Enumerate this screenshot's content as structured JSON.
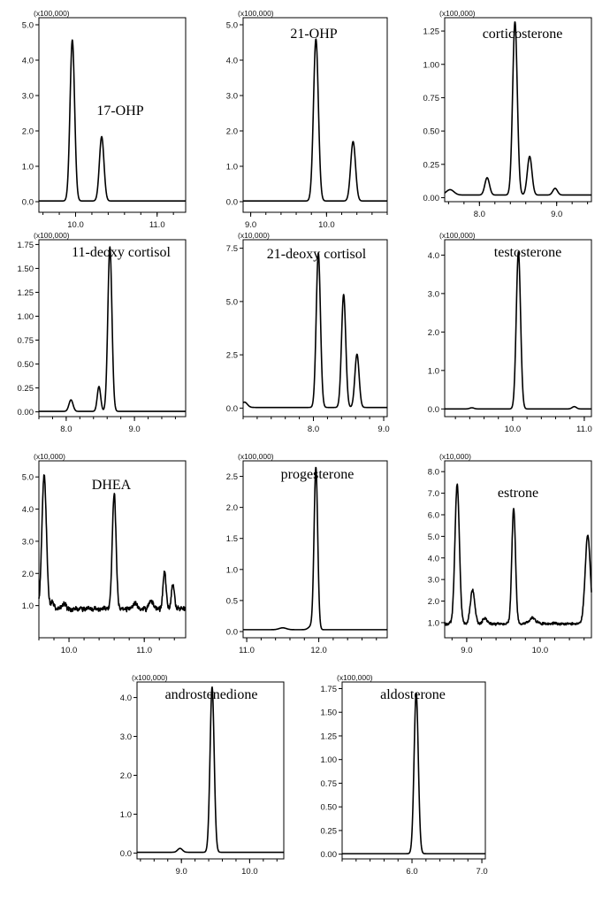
{
  "chart_data": [
    {
      "type": "line",
      "title": "17-OHP",
      "scale_label": "(x100,000)",
      "xlim": [
        9.55,
        11.35
      ],
      "ylim": [
        -0.3,
        5.2
      ],
      "x_ticks": [
        "10.0",
        "11.0"
      ],
      "x_tick_values": [
        10.0,
        11.0
      ],
      "y_ticks": [
        "0.0",
        "1.0",
        "2.0",
        "3.0",
        "4.0",
        "5.0"
      ],
      "y_tick_values": [
        0,
        1,
        2,
        3,
        4,
        5
      ],
      "baseline": 0.02,
      "peaks": [
        {
          "x": 9.96,
          "y": 4.55,
          "w": 0.028
        },
        {
          "x": 10.32,
          "y": 1.82,
          "w": 0.028
        }
      ]
    },
    {
      "type": "line",
      "title": "21-OHP",
      "scale_label": "(x100,000)",
      "xlim": [
        8.9,
        10.8
      ],
      "ylim": [
        -0.3,
        5.2
      ],
      "x_ticks": [
        "9.0",
        "10.0"
      ],
      "x_tick_values": [
        9.0,
        10.0
      ],
      "y_ticks": [
        "0.0",
        "1.0",
        "2.0",
        "3.0",
        "4.0",
        "5.0"
      ],
      "y_tick_values": [
        0,
        1,
        2,
        3,
        4,
        5
      ],
      "baseline": 0.02,
      "peaks": [
        {
          "x": 9.86,
          "y": 4.58,
          "w": 0.032
        },
        {
          "x": 10.35,
          "y": 1.68,
          "w": 0.032
        }
      ]
    },
    {
      "type": "line",
      "title": "corticosterone",
      "scale_label": "(x100,000)",
      "xlim": [
        7.55,
        9.45
      ],
      "ylim": [
        -0.03,
        1.35
      ],
      "x_ticks": [
        "8.0",
        "9.0"
      ],
      "x_tick_values": [
        8.0,
        9.0
      ],
      "y_ticks": [
        "0.00",
        "0.25",
        "0.50",
        "0.75",
        "1.00",
        "1.25"
      ],
      "y_tick_values": [
        0,
        0.25,
        0.5,
        0.75,
        1.0,
        1.25
      ],
      "baseline": 0.02,
      "peaks": [
        {
          "x": 7.62,
          "y": 0.04,
          "w": 0.05
        },
        {
          "x": 8.1,
          "y": 0.13,
          "w": 0.03
        },
        {
          "x": 8.46,
          "y": 1.3,
          "w": 0.03
        },
        {
          "x": 8.65,
          "y": 0.29,
          "w": 0.03
        },
        {
          "x": 8.98,
          "y": 0.05,
          "w": 0.03
        }
      ]
    },
    {
      "type": "line",
      "title": "11-deoxy cortisol",
      "scale_label": "(x100,000)",
      "xlim": [
        7.6,
        9.75
      ],
      "ylim": [
        -0.05,
        1.8
      ],
      "x_ticks": [
        "8.0",
        "9.0"
      ],
      "x_tick_values": [
        8.0,
        9.0
      ],
      "y_ticks": [
        "0.00",
        "0.25",
        "0.50",
        "0.75",
        "1.00",
        "1.25",
        "1.50",
        "1.75"
      ],
      "y_tick_values": [
        0,
        0.25,
        0.5,
        0.75,
        1.0,
        1.25,
        1.5,
        1.75
      ],
      "baseline": 0.005,
      "peaks": [
        {
          "x": 8.07,
          "y": 0.12,
          "w": 0.03
        },
        {
          "x": 8.48,
          "y": 0.26,
          "w": 0.025
        },
        {
          "x": 8.64,
          "y": 1.72,
          "w": 0.03
        }
      ]
    },
    {
      "type": "line",
      "title": "21-deoxy cortisol",
      "scale_label": "(x10,000)",
      "xlim": [
        7.0,
        9.05
      ],
      "ylim": [
        -0.4,
        7.9
      ],
      "x_ticks": [
        "8.0",
        "9.0"
      ],
      "x_tick_values": [
        8.0,
        9.0
      ],
      "y_ticks": [
        "0.0",
        "2.5",
        "5.0",
        "7.5"
      ],
      "y_tick_values": [
        0,
        2.5,
        5.0,
        7.5
      ],
      "baseline": 0.03,
      "peaks": [
        {
          "x": 7.02,
          "y": 0.25,
          "w": 0.04
        },
        {
          "x": 8.07,
          "y": 7.25,
          "w": 0.03
        },
        {
          "x": 8.43,
          "y": 5.3,
          "w": 0.03
        },
        {
          "x": 8.62,
          "y": 2.5,
          "w": 0.03
        }
      ]
    },
    {
      "type": "line",
      "title": "testosterone",
      "scale_label": "(x100,000)",
      "xlim": [
        9.05,
        11.1
      ],
      "ylim": [
        -0.2,
        4.4
      ],
      "x_ticks": [
        "10.0",
        "11.0"
      ],
      "x_tick_values": [
        10.0,
        11.0
      ],
      "y_ticks": [
        "0.0",
        "1.0",
        "2.0",
        "3.0",
        "4.0"
      ],
      "y_tick_values": [
        0,
        1,
        2,
        3,
        4
      ],
      "baseline": 0.0,
      "peaks": [
        {
          "x": 9.43,
          "y": 0.03,
          "w": 0.03
        },
        {
          "x": 10.08,
          "y": 4.08,
          "w": 0.03
        },
        {
          "x": 10.86,
          "y": 0.06,
          "w": 0.03
        }
      ]
    },
    {
      "type": "line",
      "title": "DHEA",
      "scale_label": "(x10,000)",
      "xlim": [
        9.6,
        11.55
      ],
      "ylim": [
        0.0,
        5.5
      ],
      "x_ticks": [
        "10.0",
        "11.0"
      ],
      "x_tick_values": [
        10.0,
        11.0
      ],
      "y_ticks": [
        "1.0",
        "2.0",
        "3.0",
        "4.0",
        "5.0"
      ],
      "y_tick_values": [
        1,
        2,
        3,
        4,
        5
      ],
      "baseline": 0.9,
      "noise": 0.12,
      "peaks": [
        {
          "x": 9.67,
          "y": 4.15,
          "w": 0.03
        },
        {
          "x": 9.78,
          "y": 0.2,
          "w": 0.02
        },
        {
          "x": 9.93,
          "y": 0.18,
          "w": 0.025
        },
        {
          "x": 10.6,
          "y": 3.6,
          "w": 0.025
        },
        {
          "x": 10.88,
          "y": 0.15,
          "w": 0.03
        },
        {
          "x": 11.09,
          "y": 0.25,
          "w": 0.025
        },
        {
          "x": 11.27,
          "y": 1.15,
          "w": 0.02
        },
        {
          "x": 11.38,
          "y": 0.75,
          "w": 0.02
        }
      ]
    },
    {
      "type": "line",
      "title": "progesterone",
      "scale_label": "(x100,000)",
      "xlim": [
        10.95,
        12.95
      ],
      "ylim": [
        -0.1,
        2.75
      ],
      "x_ticks": [
        "11.0",
        "12.0"
      ],
      "x_tick_values": [
        11.0,
        12.0
      ],
      "y_ticks": [
        "0.0",
        "0.5",
        "1.0",
        "1.5",
        "2.0",
        "2.5"
      ],
      "y_tick_values": [
        0,
        0.5,
        1.0,
        1.5,
        2.0,
        2.5
      ],
      "baseline": 0.03,
      "peaks": [
        {
          "x": 11.5,
          "y": 0.03,
          "w": 0.05
        },
        {
          "x": 11.9,
          "y": 0.06,
          "w": 0.04
        },
        {
          "x": 11.96,
          "y": 2.6,
          "w": 0.025
        }
      ]
    },
    {
      "type": "line",
      "title": "estrone",
      "scale_label": "(x10,000)",
      "xlim": [
        8.7,
        10.7
      ],
      "ylim": [
        0.3,
        8.5
      ],
      "x_ticks": [
        "9.0",
        "10.0"
      ],
      "x_tick_values": [
        9.0,
        10.0
      ],
      "y_ticks": [
        "1.0",
        "2.0",
        "3.0",
        "4.0",
        "5.0",
        "6.0",
        "7.0",
        "8.0"
      ],
      "y_tick_values": [
        1,
        2,
        3,
        4,
        5,
        6,
        7,
        8
      ],
      "baseline": 0.95,
      "noise": 0.1,
      "peaks": [
        {
          "x": 8.87,
          "y": 6.45,
          "w": 0.03
        },
        {
          "x": 9.08,
          "y": 1.55,
          "w": 0.03
        },
        {
          "x": 9.25,
          "y": 0.25,
          "w": 0.03
        },
        {
          "x": 9.64,
          "y": 5.35,
          "w": 0.025
        },
        {
          "x": 9.9,
          "y": 0.25,
          "w": 0.04
        },
        {
          "x": 10.65,
          "y": 4.1,
          "w": 0.035
        }
      ]
    },
    {
      "type": "line",
      "title": "androstenedione",
      "scale_label": "(x100,000)",
      "xlim": [
        8.35,
        10.5
      ],
      "ylim": [
        -0.15,
        4.4
      ],
      "x_ticks": [
        "9.0",
        "10.0"
      ],
      "x_tick_values": [
        9.0,
        10.0
      ],
      "y_ticks": [
        "0.0",
        "1.0",
        "2.0",
        "3.0",
        "4.0"
      ],
      "y_tick_values": [
        0,
        1,
        2,
        3,
        4
      ],
      "baseline": 0.02,
      "peaks": [
        {
          "x": 8.98,
          "y": 0.1,
          "w": 0.035
        },
        {
          "x": 9.45,
          "y": 4.25,
          "w": 0.03
        }
      ]
    },
    {
      "type": "line",
      "title": "aldosterone",
      "scale_label": "(x100,000)",
      "xlim": [
        5.0,
        7.05
      ],
      "ylim": [
        -0.05,
        1.82
      ],
      "x_ticks": [
        "6.0",
        "7.0"
      ],
      "x_tick_values": [
        6.0,
        7.0
      ],
      "y_ticks": [
        "0.00",
        "0.25",
        "0.50",
        "0.75",
        "1.00",
        "1.25",
        "1.50",
        "1.75"
      ],
      "y_tick_values": [
        0,
        0.25,
        0.5,
        0.75,
        1.0,
        1.25,
        1.5,
        1.75
      ],
      "baseline": 0.005,
      "peaks": [
        {
          "x": 6.06,
          "y": 1.7,
          "w": 0.03
        }
      ]
    }
  ]
}
